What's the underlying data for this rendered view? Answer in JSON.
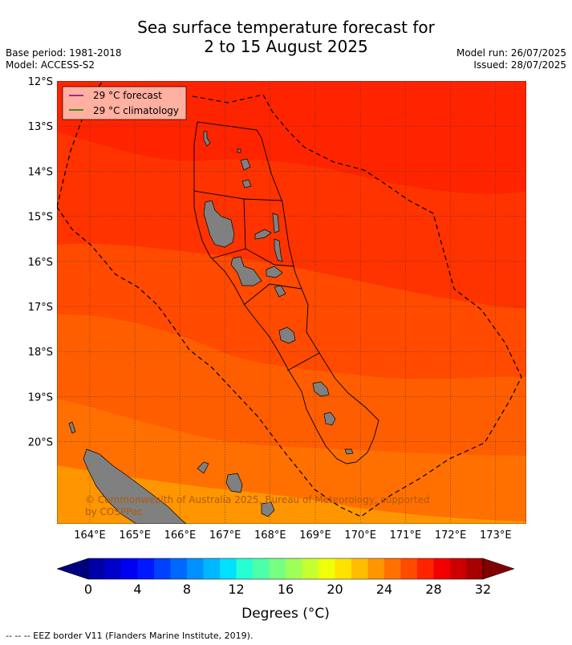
{
  "title_line1": "Sea surface temperature forecast for",
  "title_line2": "2 to 15 August 2025",
  "base_period": "Base period: 1981-2018",
  "model": "Model: ACCESS-S2",
  "model_run": "Model run: 26/07/2025",
  "issued": "Issued: 28/07/2025",
  "legend": {
    "forecast_label": "29 °C  forecast",
    "forecast_color": "#800080",
    "climatology_label": "29 °C  climatology",
    "climatology_color": "#008000"
  },
  "copyright": "© Commonwealth of Australia 2025, Bureau of Meteorology, supported by COSPPac",
  "colorbar": {
    "ticks": [
      "0",
      "4",
      "8",
      "12",
      "16",
      "20",
      "24",
      "28",
      "32"
    ],
    "label": "Degrees (°C)",
    "colors": [
      "#00007f",
      "#0000a6",
      "#0000cc",
      "#0000f2",
      "#0018ff",
      "#0040ff",
      "#0068ff",
      "#0090ff",
      "#00b8ff",
      "#00e0ff",
      "#26ffd1",
      "#4effa9",
      "#76ff81",
      "#9eff59",
      "#c6ff31",
      "#eeff09",
      "#ffe200",
      "#ffbc00",
      "#ff9600",
      "#ff7000",
      "#ff4a00",
      "#ff2400",
      "#f20000",
      "#cc0000",
      "#a60000",
      "#800000"
    ]
  },
  "axes": {
    "lat_ticks": [
      "12°S",
      "13°S",
      "14°S",
      "15°S",
      "16°S",
      "17°S",
      "18°S",
      "19°S",
      "20°S"
    ],
    "lon_ticks": [
      "164°E",
      "165°E",
      "166°E",
      "167°E",
      "168°E",
      "169°E",
      "170°E",
      "171°E",
      "172°E",
      "173°E"
    ]
  },
  "footer": "-- -- -- EEZ border V11 (Flanders Marine Institute, 2019)."
}
